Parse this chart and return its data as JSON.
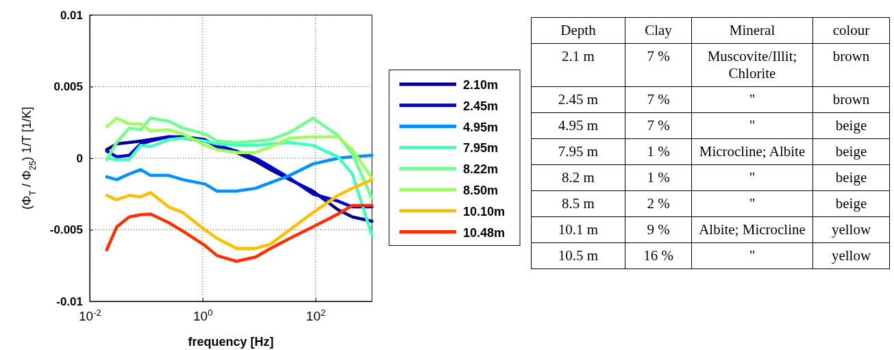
{
  "chart_data": [
    {
      "type": "line",
      "xlabel": "frequency [Hz]",
      "ylabel": "(Φ$_{T}$ / Φ$_{25}$) 1/T  [1/K]",
      "log": "x",
      "grid": true,
      "legend": "right",
      "xlim": [
        0.01,
        1000
      ],
      "xticks": [
        {
          "value": 0.01,
          "label": "10$^{-2}$"
        },
        {
          "value": 1,
          "label": "10$^{0}$"
        },
        {
          "value": 100,
          "label": "10$^{2}$"
        }
      ],
      "ylim": [
        -0.01,
        0.01
      ],
      "yticks": [
        -0.01,
        -0.005,
        0,
        0.005,
        0.01
      ],
      "x": [
        0.02,
        0.03,
        0.05,
        0.08,
        0.12,
        0.25,
        0.45,
        1.1,
        1.8,
        4,
        8.7,
        16,
        35,
        90,
        250,
        450,
        1000
      ],
      "series": [
        {
          "name": "2.10m",
          "color": "#00008f",
          "values": [
            0.0006,
            0.001,
            0.0011,
            0.0012,
            0.0013,
            0.0015,
            0.0015,
            0.0013,
            0.0008,
            0.0004,
            -0.0002,
            -0.0008,
            -0.0015,
            -0.0023,
            -0.0036,
            -0.0041,
            -0.0044
          ]
        },
        {
          "name": "2.45m",
          "color": "#0000cc",
          "values": [
            0.0005,
            0.0001,
            0.0002,
            0.001,
            0.0012,
            0.0015,
            0.0014,
            0.0012,
            0.0009,
            0.0005,
            0,
            -0.0006,
            -0.0014,
            -0.0025,
            -0.003,
            -0.0034,
            -0.0034
          ]
        },
        {
          "name": "4.95m",
          "color": "#0090ff",
          "values": [
            -0.0013,
            -0.0015,
            -0.0011,
            -0.0008,
            -0.0012,
            -0.0012,
            -0.0015,
            -0.0018,
            -0.0023,
            -0.0023,
            -0.0021,
            -0.0017,
            -0.0012,
            -0.0004,
            0,
            0.0001,
            0.0002
          ]
        },
        {
          "name": "7.95m",
          "color": "#40ffc0",
          "values": [
            0,
            -0.0001,
            -0.0001,
            0.0009,
            0.0008,
            0.0013,
            0.0014,
            0.0012,
            0.001,
            0.0009,
            0.0009,
            0.001,
            0.0011,
            0.0009,
            0.0001,
            -0.0011,
            -0.0054
          ]
        },
        {
          "name": "8.22m",
          "color": "#70ff90",
          "values": [
            -0.0001,
            0.0011,
            0.0021,
            0.002,
            0.0028,
            0.0026,
            0.0021,
            0.0017,
            0.0012,
            0.0011,
            0.0012,
            0.0013,
            0.0018,
            0.0028,
            0.0016,
            0.0003,
            -0.0028
          ]
        },
        {
          "name": "8.50m",
          "color": "#a0ff60",
          "values": [
            0.0022,
            0.0028,
            0.0024,
            0.0024,
            0.0019,
            0.002,
            0.0017,
            0.0009,
            0.0006,
            0.0004,
            0.0004,
            0.0008,
            0.0014,
            0.0015,
            0.0015,
            0.0006,
            -0.0014
          ]
        },
        {
          "name": "10.10m",
          "color": "#ffbf00",
          "values": [
            -0.0026,
            -0.0029,
            -0.0026,
            -0.0027,
            -0.0024,
            -0.0034,
            -0.0038,
            -0.005,
            -0.0056,
            -0.0063,
            -0.0063,
            -0.006,
            -0.005,
            -0.0038,
            -0.0026,
            -0.0021,
            -0.0015
          ]
        },
        {
          "name": "10.48m",
          "color": "#ff3000",
          "values": [
            -0.0064,
            -0.0048,
            -0.0041,
            -0.00395,
            -0.0039,
            -0.0045,
            -0.0051,
            -0.0061,
            -0.0068,
            -0.0072,
            -0.0069,
            -0.0063,
            -0.0056,
            -0.0048,
            -0.0039,
            -0.0033,
            -0.0033
          ]
        }
      ]
    },
    {
      "type": "other",
      "categories": [
        "Depth",
        "Clay",
        "Mineral",
        "colour"
      ],
      "annotations": [
        "2.1 m",
        "7 %",
        "Muscovite/Illit; Chlorite",
        "brown",
        "2.45 m",
        "7 %",
        "\"",
        "brown",
        "4.95 m",
        "7 %",
        "\"",
        "beige",
        "7.95 m",
        "1 %",
        "Microcline; Albite",
        "beige",
        "8.2 m",
        "1 %",
        "\"",
        "beige",
        "8.5 m",
        "2 %",
        "\"",
        "beige",
        "10.1 m",
        "9 %",
        "Albite; Microcline",
        "yellow",
        "10.5 m",
        "16 %",
        "\"",
        "yellow"
      ]
    }
  ]
}
